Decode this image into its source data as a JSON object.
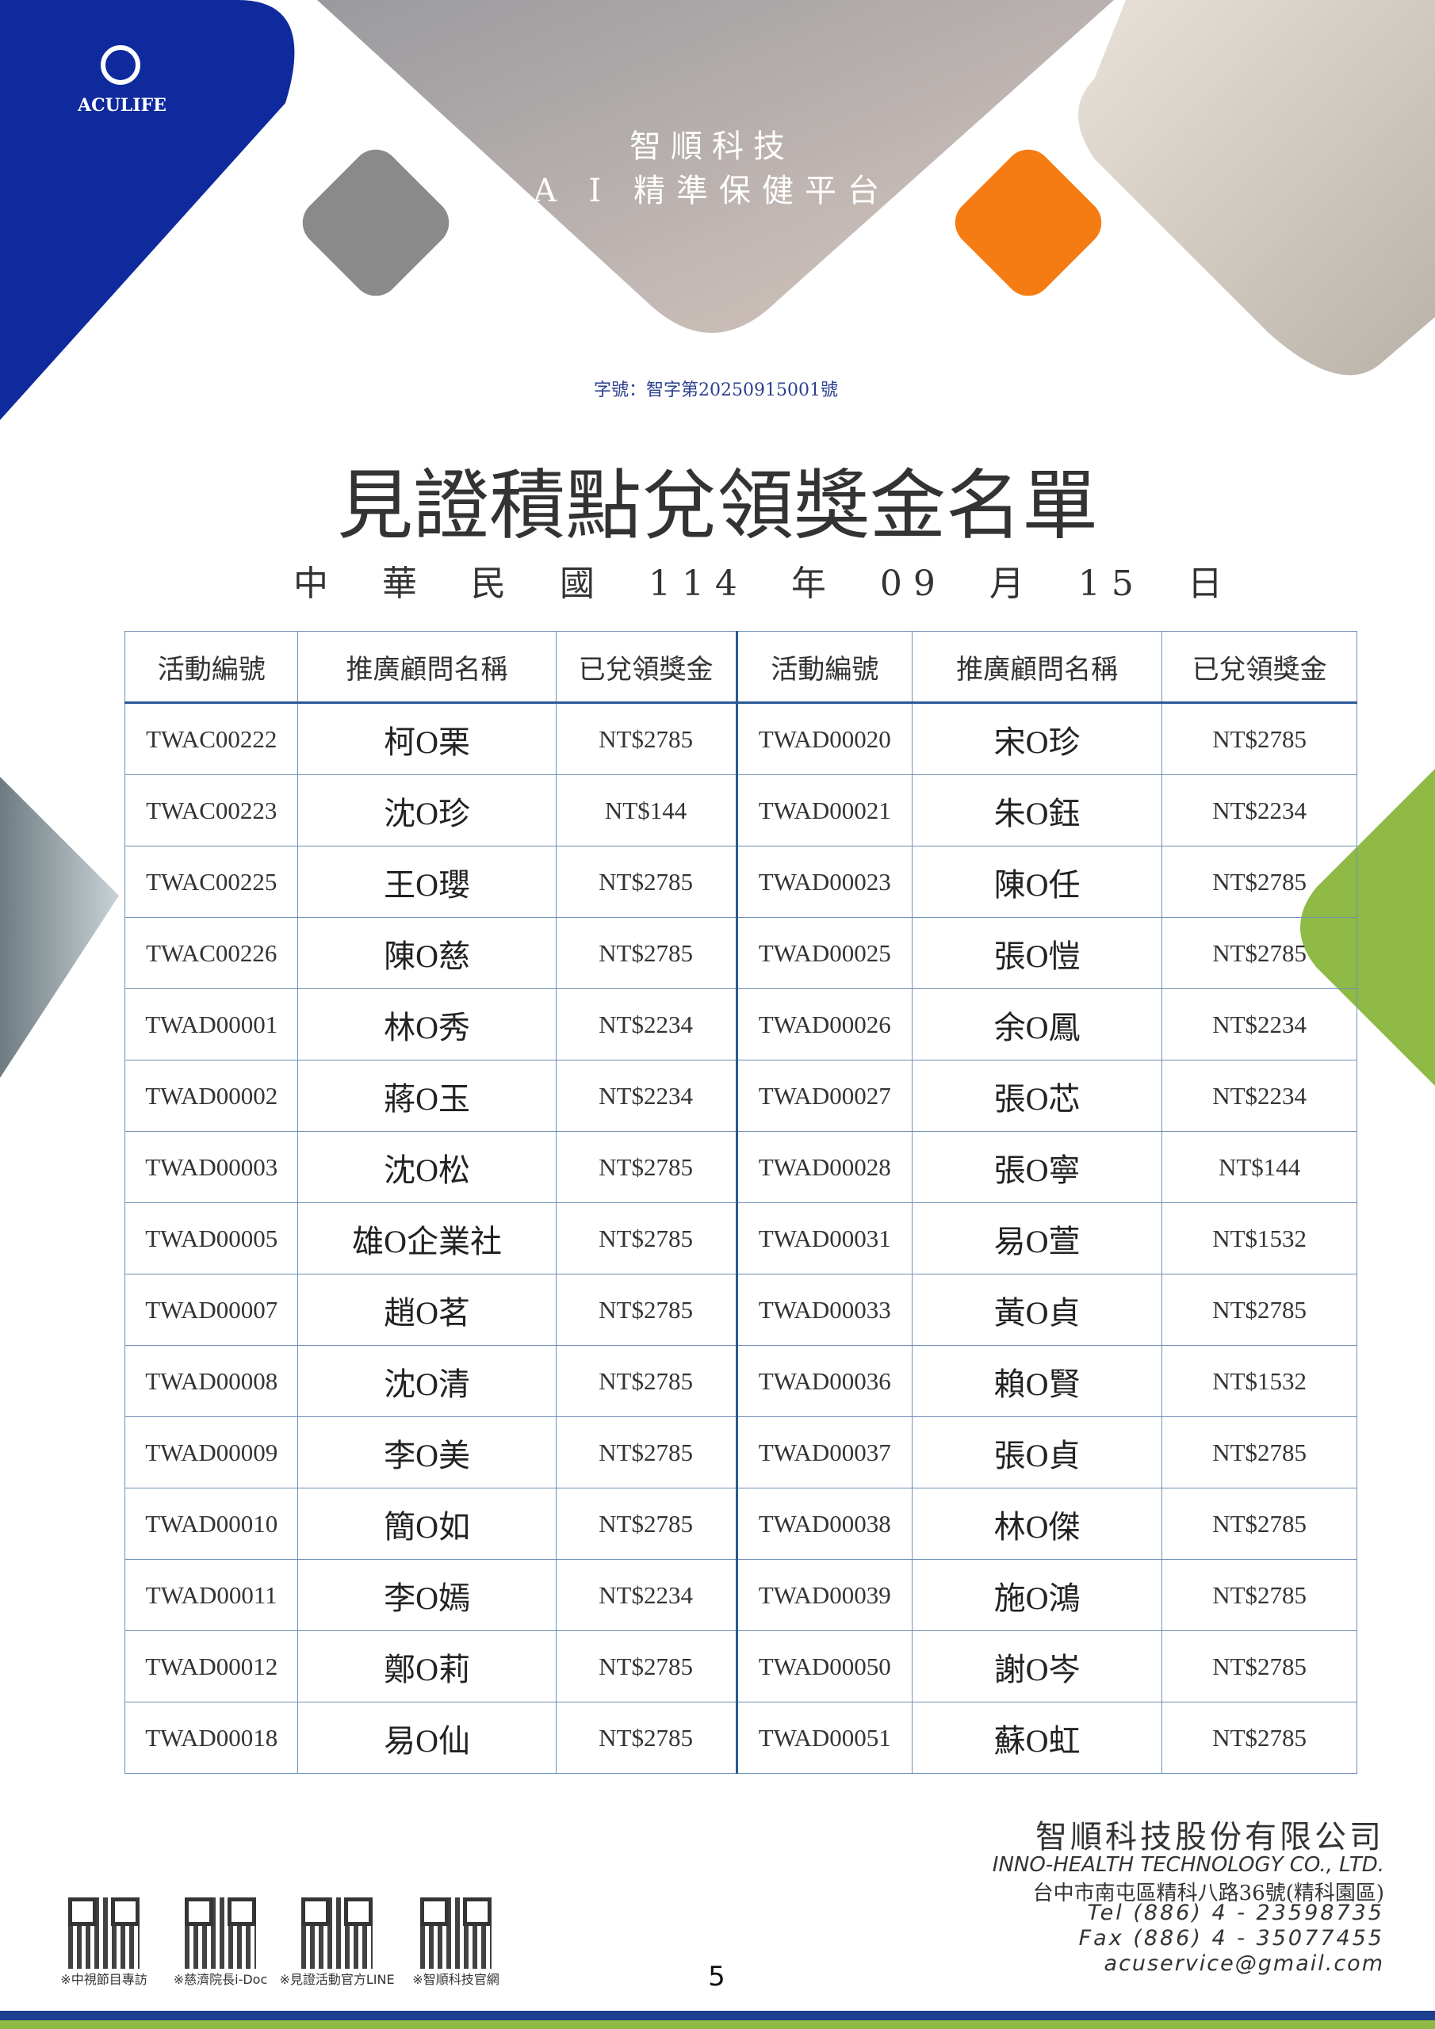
{
  "header": {
    "logo": "ACULIFE",
    "brand": "智順科技",
    "slogan": "A I 精準保健平台",
    "doc_number": "字號：智字第20250915001號"
  },
  "title": "見證積點兌領獎金名單",
  "date": "中 華 民 國 114 年 09 月 15 日",
  "table": {
    "headers": [
      "活動編號",
      "推廣顧問名稱",
      "已兌領獎金",
      "活動編號",
      "推廣顧問名稱",
      "已兌領獎金"
    ],
    "rows": [
      [
        "TWAC00222",
        "柯O栗",
        "NT$2785",
        "TWAD00020",
        "宋O珍",
        "NT$2785"
      ],
      [
        "TWAC00223",
        "沈O珍",
        "NT$144",
        "TWAD00021",
        "朱O鈺",
        "NT$2234"
      ],
      [
        "TWAC00225",
        "王O瓔",
        "NT$2785",
        "TWAD00023",
        "陳O任",
        "NT$2785"
      ],
      [
        "TWAC00226",
        "陳O慈",
        "NT$2785",
        "TWAD00025",
        "張O愷",
        "NT$2785"
      ],
      [
        "TWAD00001",
        "林O秀",
        "NT$2234",
        "TWAD00026",
        "余O鳳",
        "NT$2234"
      ],
      [
        "TWAD00002",
        "蔣O玉",
        "NT$2234",
        "TWAD00027",
        "張O芯",
        "NT$2234"
      ],
      [
        "TWAD00003",
        "沈O松",
        "NT$2785",
        "TWAD00028",
        "張O寧",
        "NT$144"
      ],
      [
        "TWAD00005",
        "雄O企業社",
        "NT$2785",
        "TWAD00031",
        "易O萱",
        "NT$1532"
      ],
      [
        "TWAD00007",
        "趙O茗",
        "NT$2785",
        "TWAD00033",
        "黃O貞",
        "NT$2785"
      ],
      [
        "TWAD00008",
        "沈O清",
        "NT$2785",
        "TWAD00036",
        "賴O賢",
        "NT$1532"
      ],
      [
        "TWAD00009",
        "李O美",
        "NT$2785",
        "TWAD00037",
        "張O貞",
        "NT$2785"
      ],
      [
        "TWAD00010",
        "簡O如",
        "NT$2785",
        "TWAD00038",
        "林O傑",
        "NT$2785"
      ],
      [
        "TWAD00011",
        "李O嫣",
        "NT$2234",
        "TWAD00039",
        "施O鴻",
        "NT$2785"
      ],
      [
        "TWAD00012",
        "鄭O莉",
        "NT$2785",
        "TWAD00050",
        "謝O岑",
        "NT$2785"
      ],
      [
        "TWAD00018",
        "易O仙",
        "NT$2785",
        "TWAD00051",
        "蘇O虹",
        "NT$2785"
      ]
    ]
  },
  "footer": {
    "company": "智順科技股份有限公司",
    "company_en": "INNO-HEALTH TECHNOLOGY CO., LTD.",
    "address": "台中市南屯區精科八路36號(精科園區)",
    "tel": "Tel (886) 4 - 23598735",
    "fax": "Fax (886) 4 - 35077455",
    "email": "acuservice@gmail.com",
    "qr_captions": [
      "※中視節目專訪",
      "※慈濟院長i-Doc",
      "※見證活動官方LINE",
      "※智順科技官網"
    ],
    "page_number": "5"
  }
}
